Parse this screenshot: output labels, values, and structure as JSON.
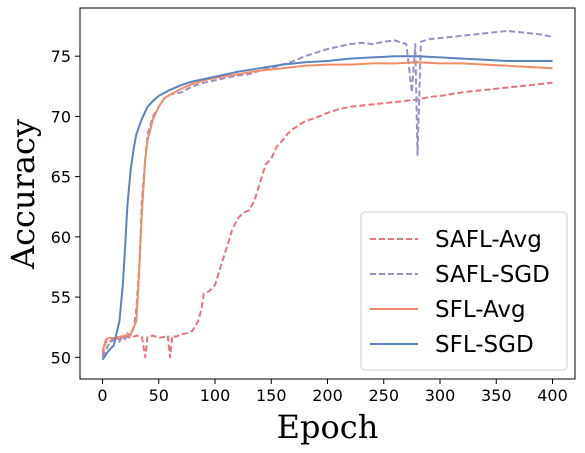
{
  "chart_data": {
    "type": "line",
    "xlabel": "Epoch",
    "ylabel": "Accuracy",
    "xlim": [
      -20,
      420
    ],
    "ylim": [
      48.2,
      79
    ],
    "xticks": [
      0,
      50,
      100,
      150,
      200,
      250,
      300,
      350,
      400
    ],
    "yticks": [
      50,
      55,
      60,
      65,
      70,
      75
    ],
    "grid": false,
    "legend_position": "bottom-right",
    "series": [
      {
        "name": "SAFL-Avg",
        "color": "#e8747a",
        "dash": "dashed",
        "x": [
          0,
          3,
          6,
          10,
          15,
          20,
          25,
          30,
          35,
          38,
          40,
          45,
          50,
          55,
          58,
          60,
          62,
          65,
          70,
          75,
          80,
          85,
          88,
          90,
          95,
          100,
          105,
          110,
          115,
          120,
          125,
          130,
          135,
          140,
          145,
          150,
          155,
          160,
          165,
          170,
          175,
          180,
          190,
          200,
          210,
          220,
          230,
          240,
          250,
          260,
          270,
          280,
          290,
          300,
          320,
          340,
          360,
          380,
          400
        ],
        "y": [
          50.2,
          51.3,
          51.2,
          51.6,
          51.5,
          51.8,
          51.6,
          51.8,
          51.7,
          50.0,
          51.7,
          51.8,
          51.6,
          51.7,
          51.8,
          50.0,
          51.8,
          51.7,
          51.9,
          52.0,
          52.2,
          53.0,
          54.0,
          55.3,
          55.5,
          56.0,
          57.5,
          59.0,
          60.5,
          61.5,
          62.0,
          62.2,
          63.0,
          64.5,
          66.0,
          66.5,
          67.5,
          68.0,
          68.6,
          69.0,
          69.3,
          69.6,
          69.9,
          70.3,
          70.6,
          70.8,
          70.9,
          71.0,
          71.1,
          71.2,
          71.3,
          71.4,
          71.6,
          71.7,
          72.0,
          72.2,
          72.4,
          72.6,
          72.8
        ]
      },
      {
        "name": "SAFL-SGD",
        "color": "#9a8ec4",
        "dash": "dashed",
        "x": [
          0,
          5,
          10,
          15,
          18,
          20,
          22,
          25,
          28,
          30,
          33,
          35,
          38,
          40,
          45,
          50,
          55,
          60,
          70,
          80,
          90,
          100,
          110,
          120,
          130,
          140,
          150,
          160,
          170,
          180,
          190,
          200,
          210,
          220,
          230,
          240,
          250,
          260,
          270,
          275,
          278,
          280,
          283,
          290,
          300,
          310,
          320,
          330,
          340,
          350,
          360,
          370,
          380,
          390,
          400
        ],
        "y": [
          50.0,
          51.0,
          51.5,
          51.3,
          51.8,
          51.5,
          52.0,
          51.8,
          52.5,
          54.0,
          58.0,
          63.0,
          66.5,
          68.5,
          70.0,
          70.8,
          71.5,
          71.8,
          72.0,
          72.5,
          72.8,
          73.0,
          73.2,
          73.4,
          73.5,
          73.8,
          74.0,
          74.3,
          74.6,
          75.0,
          75.3,
          75.6,
          75.8,
          76.0,
          76.1,
          76.0,
          76.2,
          76.3,
          76.0,
          72.0,
          76.0,
          66.8,
          76.2,
          76.4,
          76.5,
          76.6,
          76.7,
          76.8,
          76.9,
          77.0,
          77.1,
          77.0,
          76.9,
          76.8,
          76.6
        ]
      },
      {
        "name": "SFL-Avg",
        "color": "#f08c66",
        "dash": "solid",
        "x": [
          0,
          3,
          6,
          10,
          15,
          20,
          25,
          30,
          32,
          35,
          38,
          40,
          45,
          50,
          55,
          60,
          70,
          80,
          90,
          100,
          120,
          140,
          160,
          180,
          200,
          220,
          240,
          260,
          280,
          300,
          320,
          340,
          360,
          380,
          400
        ],
        "y": [
          50.5,
          51.5,
          51.6,
          51.6,
          51.7,
          51.8,
          51.9,
          53.0,
          56.0,
          62.0,
          66.5,
          68.0,
          69.8,
          70.8,
          71.5,
          71.8,
          72.3,
          72.7,
          73.0,
          73.2,
          73.5,
          73.8,
          74.0,
          74.2,
          74.3,
          74.3,
          74.4,
          74.4,
          74.5,
          74.4,
          74.4,
          74.3,
          74.2,
          74.1,
          74.0
        ]
      },
      {
        "name": "SFL-SGD",
        "color": "#5b84bf",
        "dash": "solid",
        "x": [
          0,
          5,
          10,
          15,
          18,
          20,
          22,
          25,
          28,
          30,
          35,
          40,
          45,
          50,
          60,
          70,
          80,
          90,
          100,
          120,
          140,
          160,
          180,
          200,
          220,
          240,
          260,
          280,
          300,
          320,
          340,
          360,
          380,
          400
        ],
        "y": [
          49.8,
          50.5,
          51.0,
          53.0,
          56.0,
          59.0,
          62.5,
          65.5,
          67.5,
          68.5,
          69.8,
          70.8,
          71.3,
          71.7,
          72.2,
          72.6,
          72.9,
          73.1,
          73.3,
          73.7,
          74.0,
          74.3,
          74.5,
          74.6,
          74.8,
          74.9,
          75.0,
          75.0,
          74.9,
          74.8,
          74.7,
          74.6,
          74.6,
          74.6
        ]
      }
    ]
  }
}
